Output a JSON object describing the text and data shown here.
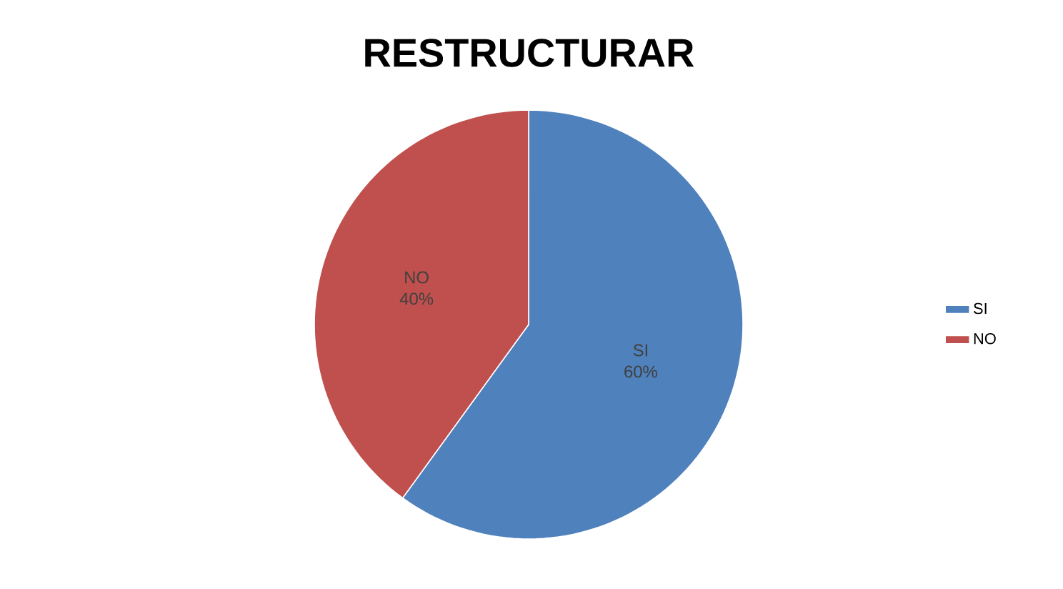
{
  "chart_data": {
    "type": "pie",
    "title": "RESTRUCTURAR",
    "categories": [
      "SI",
      "NO"
    ],
    "values": [
      60,
      40
    ],
    "colors": [
      "#4f81bd",
      "#c0504d"
    ],
    "value_labels": [
      "60%",
      "40%"
    ],
    "legend": "right"
  }
}
